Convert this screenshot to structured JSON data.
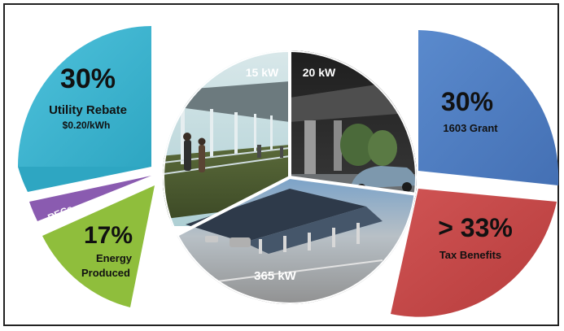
{
  "left_pie": {
    "utility_rebate": {
      "percent": "30%",
      "label": "Utility Rebate",
      "sublabel": "$0.20/kWh",
      "color": "#3cb4d0"
    },
    "recs": {
      "label": "RECs",
      "color": "#8a5bb0"
    },
    "energy_produced": {
      "percent": "17%",
      "label_line1": "Energy",
      "label_line2": "Produced",
      "color": "#8fbe3c"
    }
  },
  "center_pie": {
    "slice_15kw": {
      "label": "15 kW",
      "color": "#b9d6d8"
    },
    "slice_20kw": {
      "label": "20 kW",
      "color": "#2b2b2b"
    },
    "slice_365kw": {
      "label": "365 kW",
      "color": "#9a9a9a"
    }
  },
  "right_pie": {
    "grant_1603": {
      "percent": "30%",
      "label": "1603 Grant",
      "color": "#4f7fc2"
    },
    "tax_benefits": {
      "percent": "> 33%",
      "label": "Tax Benefits",
      "color": "#c94a4a"
    }
  }
}
